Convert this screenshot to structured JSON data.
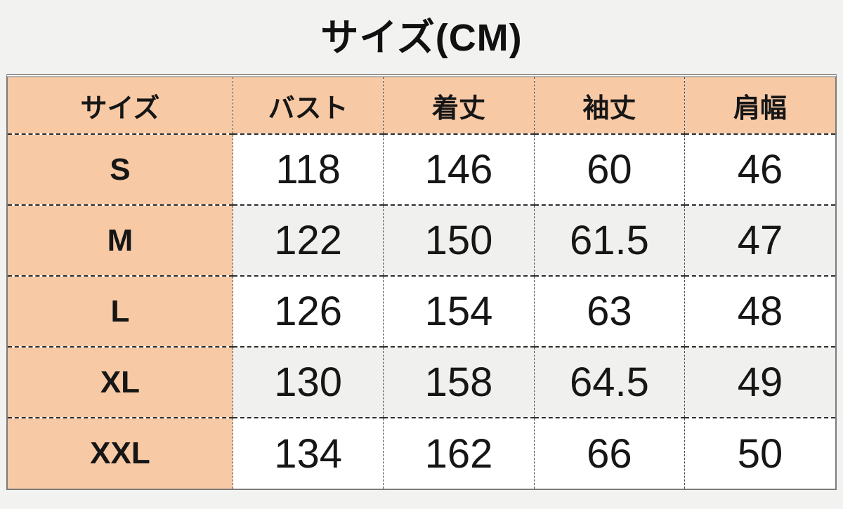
{
  "title": "サイズ(CM)",
  "size_chart": {
    "headers": [
      "サイズ",
      "バスト",
      "着丈",
      "袖丈",
      "肩幅"
    ],
    "rows": [
      {
        "size": "S",
        "values": [
          "118",
          "146",
          "60",
          "46"
        ]
      },
      {
        "size": "M",
        "values": [
          "122",
          "150",
          "61.5",
          "47"
        ]
      },
      {
        "size": "L",
        "values": [
          "126",
          "154",
          "63",
          "48"
        ]
      },
      {
        "size": "XL",
        "values": [
          "130",
          "158",
          "64.5",
          "49"
        ]
      },
      {
        "size": "XXL",
        "values": [
          "134",
          "162",
          "66",
          "50"
        ]
      }
    ]
  },
  "chart_data": {
    "type": "table",
    "title": "サイズ(CM)",
    "columns": [
      "サイズ",
      "バスト",
      "着丈",
      "袖丈",
      "肩幅"
    ],
    "rows": [
      [
        "S",
        118,
        146,
        60,
        46
      ],
      [
        "M",
        122,
        150,
        61.5,
        47
      ],
      [
        "L",
        126,
        154,
        63,
        48
      ],
      [
        "XL",
        130,
        158,
        64.5,
        49
      ],
      [
        "XXL",
        134,
        162,
        66,
        50
      ]
    ],
    "layout_hints": {
      "header_bg": "#f7c9a5",
      "label_column_bg": "#f7c9a5",
      "alt_row_bg": "#f0f0ee",
      "row_bg": "#ffffff",
      "page_bg": "#f2f2f1",
      "grid_style": "dash-dot",
      "outer_border": "#7b7b7b"
    }
  },
  "colors": {
    "accent_peach": "#f7c9a5",
    "alt_row_gray": "#f0f0ee",
    "page_background": "#f2f2f1",
    "text": "#161616",
    "frame": "#7b7b7b"
  }
}
